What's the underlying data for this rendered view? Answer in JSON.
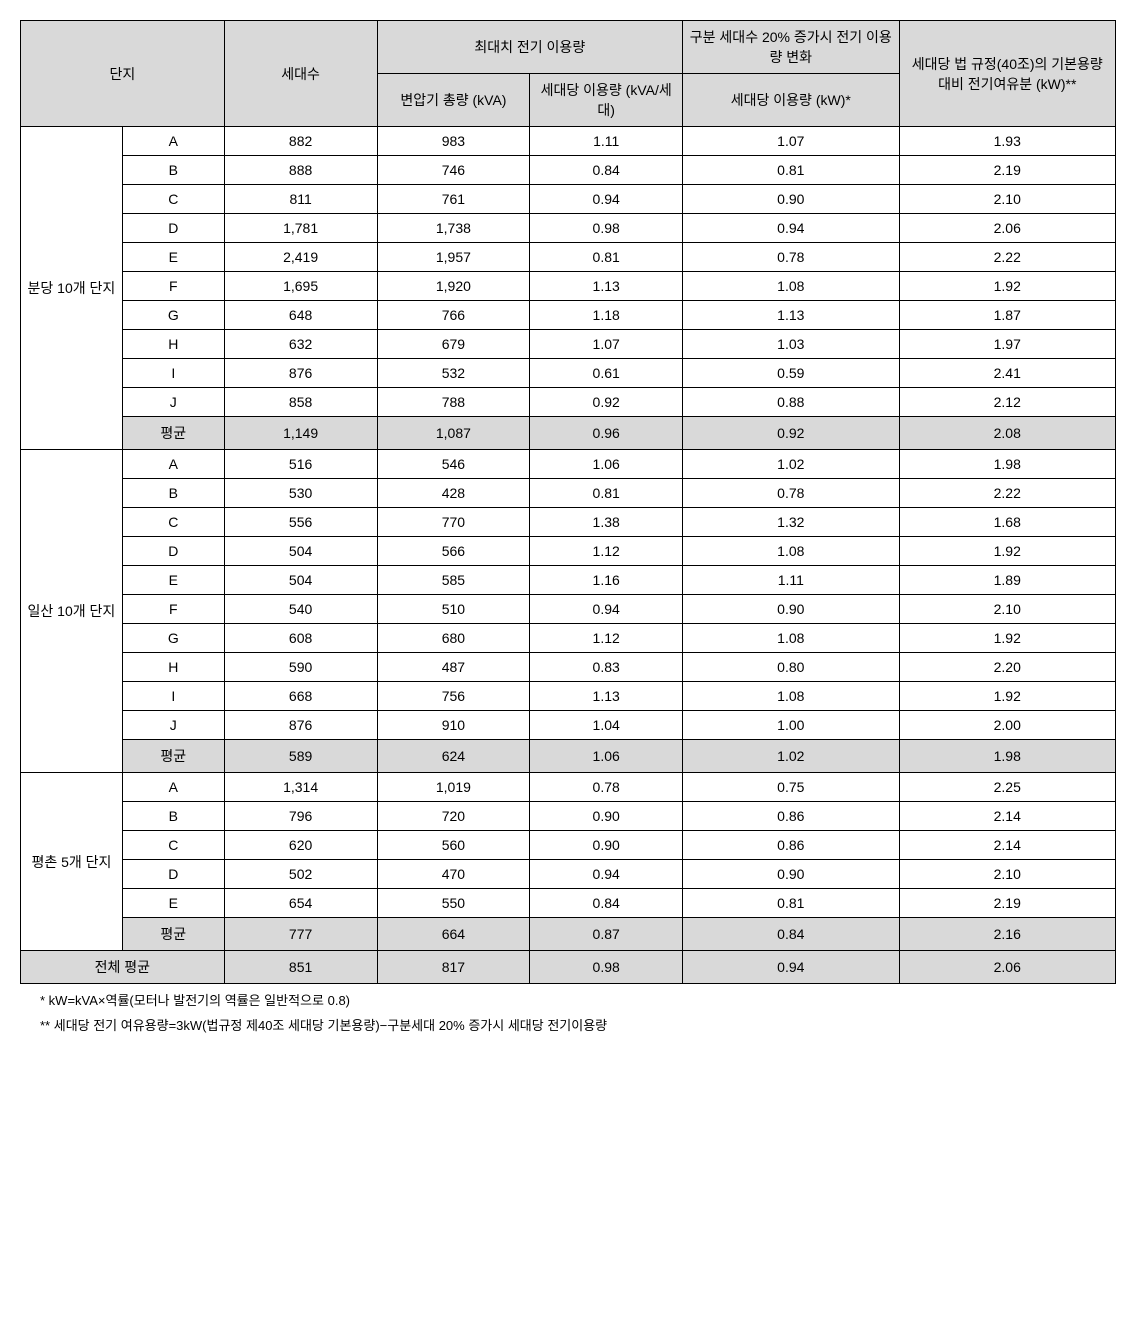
{
  "header": {
    "complex": "단지",
    "households": "세대수",
    "max_usage": "최대치 전기 이용량",
    "change20": "구분 세대수 20% 증가시 전기 이용량 변화",
    "margin": "세대당 법 규정(40조)의 기본용량 대비 전기여유분 (kW)**",
    "sub_trans": "변압기 총량 (kVA)",
    "sub_per": "세대당 이용량 (kVA/세대)",
    "sub_per_kw": "세대당 이용량 (kW)*"
  },
  "groups": [
    {
      "name": "분당 10개 단지",
      "rows": [
        {
          "sub": "A",
          "hh": "882",
          "trans": "983",
          "per": "1.11",
          "per20": "1.07",
          "margin": "1.93"
        },
        {
          "sub": "B",
          "hh": "888",
          "trans": "746",
          "per": "0.84",
          "per20": "0.81",
          "margin": "2.19"
        },
        {
          "sub": "C",
          "hh": "811",
          "trans": "761",
          "per": "0.94",
          "per20": "0.90",
          "margin": "2.10"
        },
        {
          "sub": "D",
          "hh": "1,781",
          "trans": "1,738",
          "per": "0.98",
          "per20": "0.94",
          "margin": "2.06"
        },
        {
          "sub": "E",
          "hh": "2,419",
          "trans": "1,957",
          "per": "0.81",
          "per20": "0.78",
          "margin": "2.22"
        },
        {
          "sub": "F",
          "hh": "1,695",
          "trans": "1,920",
          "per": "1.13",
          "per20": "1.08",
          "margin": "1.92"
        },
        {
          "sub": "G",
          "hh": "648",
          "trans": "766",
          "per": "1.18",
          "per20": "1.13",
          "margin": "1.87"
        },
        {
          "sub": "H",
          "hh": "632",
          "trans": "679",
          "per": "1.07",
          "per20": "1.03",
          "margin": "1.97"
        },
        {
          "sub": "I",
          "hh": "876",
          "trans": "532",
          "per": "0.61",
          "per20": "0.59",
          "margin": "2.41"
        },
        {
          "sub": "J",
          "hh": "858",
          "trans": "788",
          "per": "0.92",
          "per20": "0.88",
          "margin": "2.12"
        }
      ],
      "avg": {
        "sub": "평균",
        "hh": "1,149",
        "trans": "1,087",
        "per": "0.96",
        "per20": "0.92",
        "margin": "2.08"
      }
    },
    {
      "name": "일산 10개 단지",
      "rows": [
        {
          "sub": "A",
          "hh": "516",
          "trans": "546",
          "per": "1.06",
          "per20": "1.02",
          "margin": "1.98"
        },
        {
          "sub": "B",
          "hh": "530",
          "trans": "428",
          "per": "0.81",
          "per20": "0.78",
          "margin": "2.22"
        },
        {
          "sub": "C",
          "hh": "556",
          "trans": "770",
          "per": "1.38",
          "per20": "1.32",
          "margin": "1.68"
        },
        {
          "sub": "D",
          "hh": "504",
          "trans": "566",
          "per": "1.12",
          "per20": "1.08",
          "margin": "1.92"
        },
        {
          "sub": "E",
          "hh": "504",
          "trans": "585",
          "per": "1.16",
          "per20": "1.11",
          "margin": "1.89"
        },
        {
          "sub": "F",
          "hh": "540",
          "trans": "510",
          "per": "0.94",
          "per20": "0.90",
          "margin": "2.10"
        },
        {
          "sub": "G",
          "hh": "608",
          "trans": "680",
          "per": "1.12",
          "per20": "1.08",
          "margin": "1.92"
        },
        {
          "sub": "H",
          "hh": "590",
          "trans": "487",
          "per": "0.83",
          "per20": "0.80",
          "margin": "2.20"
        },
        {
          "sub": "I",
          "hh": "668",
          "trans": "756",
          "per": "1.13",
          "per20": "1.08",
          "margin": "1.92"
        },
        {
          "sub": "J",
          "hh": "876",
          "trans": "910",
          "per": "1.04",
          "per20": "1.00",
          "margin": "2.00"
        }
      ],
      "avg": {
        "sub": "평균",
        "hh": "589",
        "trans": "624",
        "per": "1.06",
        "per20": "1.02",
        "margin": "1.98"
      }
    },
    {
      "name": "평촌 5개 단지",
      "rows": [
        {
          "sub": "A",
          "hh": "1,314",
          "trans": "1,019",
          "per": "0.78",
          "per20": "0.75",
          "margin": "2.25"
        },
        {
          "sub": "B",
          "hh": "796",
          "trans": "720",
          "per": "0.90",
          "per20": "0.86",
          "margin": "2.14"
        },
        {
          "sub": "C",
          "hh": "620",
          "trans": "560",
          "per": "0.90",
          "per20": "0.86",
          "margin": "2.14"
        },
        {
          "sub": "D",
          "hh": "502",
          "trans": "470",
          "per": "0.94",
          "per20": "0.90",
          "margin": "2.10"
        },
        {
          "sub": "E",
          "hh": "654",
          "trans": "550",
          "per": "0.84",
          "per20": "0.81",
          "margin": "2.19"
        }
      ],
      "avg": {
        "sub": "평균",
        "hh": "777",
        "trans": "664",
        "per": "0.87",
        "per20": "0.84",
        "margin": "2.16"
      }
    }
  ],
  "total": {
    "label": "전체 평균",
    "hh": "851",
    "trans": "817",
    "per": "0.98",
    "per20": "0.94",
    "margin": "2.06"
  },
  "footnotes": {
    "f1": "* kW=kVA×역률(모터나 발전기의 역률은 일반적으로 0.8)",
    "f2": "** 세대당 전기 여유용량=3kW(법규정 제40조 세대당 기본용량)−구분세대 20% 증가시 세대당 전기이용량"
  }
}
